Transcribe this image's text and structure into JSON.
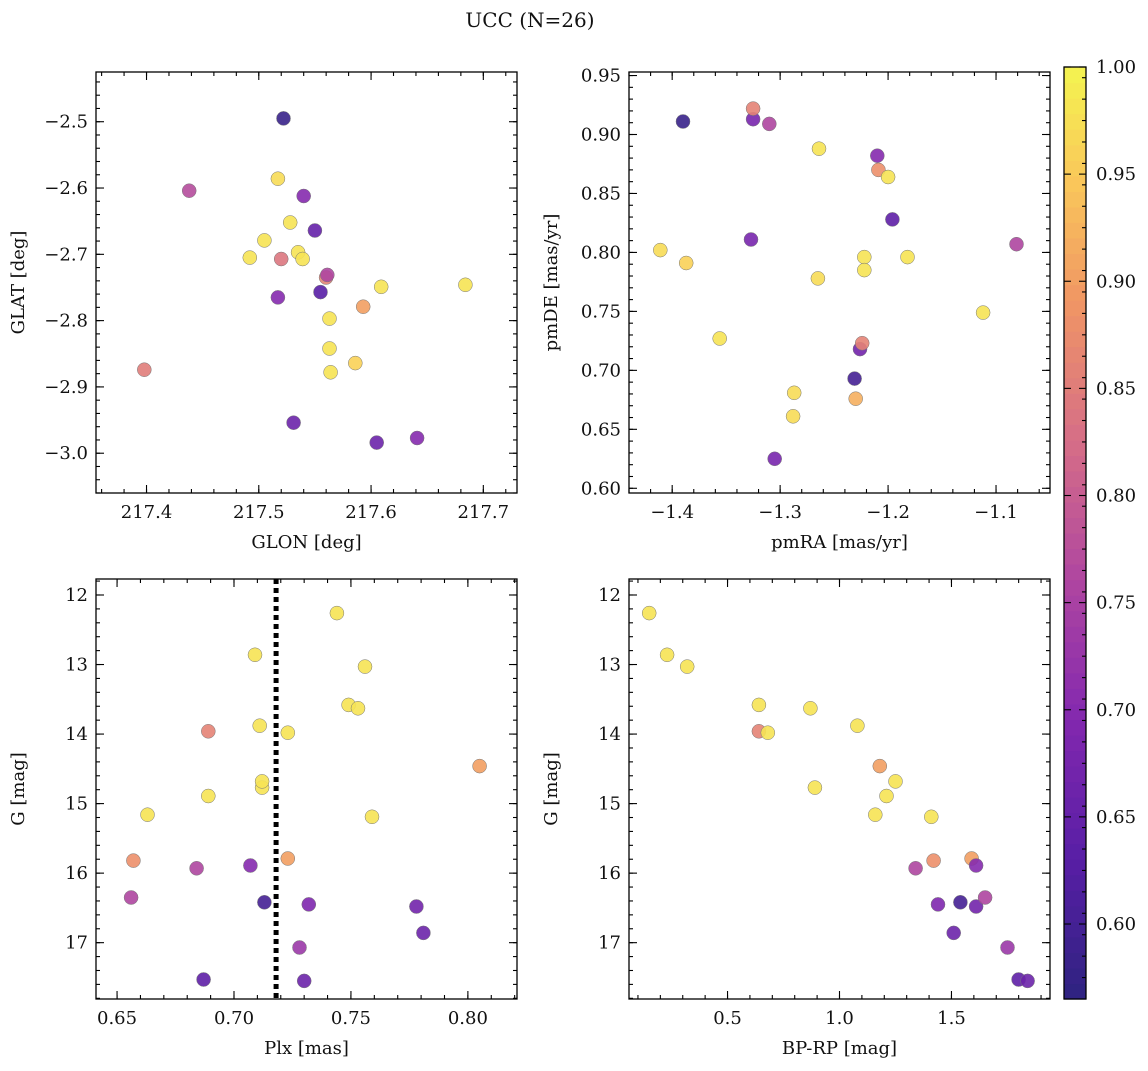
{
  "title": "UCC (N=26)",
  "colorbar": {
    "min": 0.565,
    "max": 1.0,
    "ticks": [
      1.0,
      0.95,
      0.9,
      0.85,
      0.8,
      0.75,
      0.7,
      0.65,
      0.6
    ],
    "tick_labels": [
      "1.00",
      "0.95",
      "0.90",
      "0.85",
      "0.80",
      "0.75",
      "0.70",
      "0.65",
      "0.60"
    ],
    "colormap": "plasma"
  },
  "chart_data": [
    {
      "type": "scatter",
      "xlabel": "GLON [deg]",
      "ylabel": "GLAT [deg]",
      "xlim": [
        217.355,
        217.73
      ],
      "ylim": [
        -3.06,
        -2.425
      ],
      "xticks": [
        217.4,
        217.5,
        217.6,
        217.7
      ],
      "xtick_labels": [
        "217.4",
        "217.5",
        "217.6",
        "217.7"
      ],
      "yticks": [
        -2.5,
        -2.6,
        -2.7,
        -2.8,
        -2.9,
        -3.0
      ],
      "ytick_labels": [
        "−2.5",
        "−2.6",
        "−2.7",
        "−2.8",
        "−2.9",
        "−3.0"
      ],
      "points": [
        {
          "x": 217.398,
          "y": -2.874,
          "c": 0.85
        },
        {
          "x": 217.438,
          "y": -2.604,
          "c": 0.77
        },
        {
          "x": 217.492,
          "y": -2.705,
          "c": 0.98
        },
        {
          "x": 217.505,
          "y": -2.679,
          "c": 0.98
        },
        {
          "x": 217.517,
          "y": -2.586,
          "c": 0.97
        },
        {
          "x": 217.517,
          "y": -2.765,
          "c": 0.7
        },
        {
          "x": 217.52,
          "y": -2.707,
          "c": 0.84
        },
        {
          "x": 217.522,
          "y": -2.495,
          "c": 0.58
        },
        {
          "x": 217.528,
          "y": -2.652,
          "c": 0.98
        },
        {
          "x": 217.531,
          "y": -2.954,
          "c": 0.66
        },
        {
          "x": 217.535,
          "y": -2.697,
          "c": 0.98
        },
        {
          "x": 217.539,
          "y": -2.707,
          "c": 0.98
        },
        {
          "x": 217.54,
          "y": -2.612,
          "c": 0.7
        },
        {
          "x": 217.55,
          "y": -2.664,
          "c": 0.65
        },
        {
          "x": 217.555,
          "y": -2.757,
          "c": 0.63
        },
        {
          "x": 217.56,
          "y": -2.735,
          "c": 0.86
        },
        {
          "x": 217.561,
          "y": -2.731,
          "c": 0.76
        },
        {
          "x": 217.563,
          "y": -2.842,
          "c": 0.98
        },
        {
          "x": 217.563,
          "y": -2.797,
          "c": 0.98
        },
        {
          "x": 217.564,
          "y": -2.878,
          "c": 0.98
        },
        {
          "x": 217.586,
          "y": -2.864,
          "c": 0.96
        },
        {
          "x": 217.593,
          "y": -2.779,
          "c": 0.9
        },
        {
          "x": 217.605,
          "y": -2.984,
          "c": 0.66
        },
        {
          "x": 217.609,
          "y": -2.749,
          "c": 0.98
        },
        {
          "x": 217.641,
          "y": -2.977,
          "c": 0.7
        },
        {
          "x": 217.684,
          "y": -2.746,
          "c": 0.98
        }
      ]
    },
    {
      "type": "scatter",
      "xlabel": "pmRA [mas/yr]",
      "ylabel": "pmDE [mas/yr]",
      "xlim": [
        -1.44,
        -1.05
      ],
      "ylim": [
        0.596,
        0.953
      ],
      "xticks": [
        -1.4,
        -1.3,
        -1.2,
        -1.1
      ],
      "xtick_labels": [
        "−1.4",
        "−1.3",
        "−1.2",
        "−1.1"
      ],
      "yticks": [
        0.6,
        0.65,
        0.7,
        0.75,
        0.8,
        0.85,
        0.9,
        0.95
      ],
      "ytick_labels": [
        "0.60",
        "0.65",
        "0.70",
        "0.75",
        "0.80",
        "0.85",
        "0.90",
        "0.95"
      ],
      "points": [
        {
          "x": -1.411,
          "y": 0.802,
          "c": 0.97
        },
        {
          "x": -1.39,
          "y": 0.911,
          "c": 0.58
        },
        {
          "x": -1.387,
          "y": 0.791,
          "c": 0.96
        },
        {
          "x": -1.356,
          "y": 0.727,
          "c": 0.98
        },
        {
          "x": -1.327,
          "y": 0.811,
          "c": 0.68
        },
        {
          "x": -1.325,
          "y": 0.913,
          "c": 0.68
        },
        {
          "x": -1.325,
          "y": 0.922,
          "c": 0.86
        },
        {
          "x": -1.31,
          "y": 0.909,
          "c": 0.76
        },
        {
          "x": -1.305,
          "y": 0.625,
          "c": 0.68
        },
        {
          "x": -1.288,
          "y": 0.661,
          "c": 0.97
        },
        {
          "x": -1.287,
          "y": 0.681,
          "c": 0.97
        },
        {
          "x": -1.265,
          "y": 0.778,
          "c": 0.97
        },
        {
          "x": -1.264,
          "y": 0.888,
          "c": 0.98
        },
        {
          "x": -1.231,
          "y": 0.693,
          "c": 0.6
        },
        {
          "x": -1.23,
          "y": 0.676,
          "c": 0.92
        },
        {
          "x": -1.226,
          "y": 0.718,
          "c": 0.67
        },
        {
          "x": -1.224,
          "y": 0.723,
          "c": 0.86
        },
        {
          "x": -1.222,
          "y": 0.796,
          "c": 0.98
        },
        {
          "x": -1.222,
          "y": 0.785,
          "c": 0.98
        },
        {
          "x": -1.21,
          "y": 0.882,
          "c": 0.7
        },
        {
          "x": -1.209,
          "y": 0.87,
          "c": 0.88
        },
        {
          "x": -1.2,
          "y": 0.864,
          "c": 0.98
        },
        {
          "x": -1.196,
          "y": 0.828,
          "c": 0.64
        },
        {
          "x": -1.182,
          "y": 0.796,
          "c": 0.98
        },
        {
          "x": -1.112,
          "y": 0.749,
          "c": 0.98
        },
        {
          "x": -1.081,
          "y": 0.807,
          "c": 0.76
        }
      ]
    },
    {
      "type": "scatter",
      "xlabel": "Plx [mas]",
      "ylabel": "G [mag]",
      "xlim": [
        0.641,
        0.821
      ],
      "ylim": [
        17.81,
        11.77
      ],
      "xticks": [
        0.65,
        0.7,
        0.75,
        0.8
      ],
      "xtick_labels": [
        "0.65",
        "0.70",
        "0.75",
        "0.80"
      ],
      "yticks": [
        12,
        13,
        14,
        15,
        16,
        17
      ],
      "ytick_labels": [
        "12",
        "13",
        "14",
        "15",
        "16",
        "17"
      ],
      "vline": 0.718,
      "points": [
        {
          "x": 0.656,
          "y": 16.35,
          "c": 0.76
        },
        {
          "x": 0.657,
          "y": 15.82,
          "c": 0.88
        },
        {
          "x": 0.663,
          "y": 15.16,
          "c": 0.98
        },
        {
          "x": 0.684,
          "y": 15.93,
          "c": 0.76
        },
        {
          "x": 0.687,
          "y": 17.53,
          "c": 0.64
        },
        {
          "x": 0.689,
          "y": 14.89,
          "c": 0.98
        },
        {
          "x": 0.689,
          "y": 13.96,
          "c": 0.86
        },
        {
          "x": 0.707,
          "y": 15.89,
          "c": 0.7
        },
        {
          "x": 0.709,
          "y": 12.86,
          "c": 0.98
        },
        {
          "x": 0.711,
          "y": 13.88,
          "c": 0.98
        },
        {
          "x": 0.712,
          "y": 14.77,
          "c": 0.98
        },
        {
          "x": 0.712,
          "y": 14.68,
          "c": 0.98
        },
        {
          "x": 0.713,
          "y": 16.42,
          "c": 0.6
        },
        {
          "x": 0.723,
          "y": 15.79,
          "c": 0.9
        },
        {
          "x": 0.723,
          "y": 13.98,
          "c": 0.98
        },
        {
          "x": 0.728,
          "y": 17.07,
          "c": 0.73
        },
        {
          "x": 0.73,
          "y": 17.55,
          "c": 0.66
        },
        {
          "x": 0.732,
          "y": 16.45,
          "c": 0.69
        },
        {
          "x": 0.744,
          "y": 12.26,
          "c": 0.98
        },
        {
          "x": 0.749,
          "y": 13.58,
          "c": 0.98
        },
        {
          "x": 0.753,
          "y": 13.63,
          "c": 0.98
        },
        {
          "x": 0.756,
          "y": 13.03,
          "c": 0.98
        },
        {
          "x": 0.759,
          "y": 15.19,
          "c": 0.98
        },
        {
          "x": 0.778,
          "y": 16.48,
          "c": 0.67
        },
        {
          "x": 0.781,
          "y": 16.86,
          "c": 0.66
        },
        {
          "x": 0.805,
          "y": 14.46,
          "c": 0.9
        }
      ]
    },
    {
      "type": "scatter",
      "xlabel": "BP-RP [mag]",
      "ylabel": "G [mag]",
      "xlim": [
        0.06,
        1.94
      ],
      "ylim": [
        17.81,
        11.77
      ],
      "xticks": [
        0.5,
        1.0,
        1.5
      ],
      "xtick_labels": [
        "0.5",
        "1.0",
        "1.5"
      ],
      "yticks": [
        12,
        13,
        14,
        15,
        16,
        17
      ],
      "ytick_labels": [
        "12",
        "13",
        "14",
        "15",
        "16",
        "17"
      ],
      "points": [
        {
          "x": 0.15,
          "y": 12.26,
          "c": 0.98
        },
        {
          "x": 0.23,
          "y": 12.86,
          "c": 0.98
        },
        {
          "x": 0.32,
          "y": 13.03,
          "c": 0.98
        },
        {
          "x": 0.64,
          "y": 13.58,
          "c": 0.98
        },
        {
          "x": 0.64,
          "y": 13.96,
          "c": 0.86
        },
        {
          "x": 0.68,
          "y": 13.98,
          "c": 0.98
        },
        {
          "x": 0.87,
          "y": 13.63,
          "c": 0.98
        },
        {
          "x": 0.89,
          "y": 14.77,
          "c": 0.98
        },
        {
          "x": 1.08,
          "y": 13.88,
          "c": 0.98
        },
        {
          "x": 1.16,
          "y": 15.16,
          "c": 0.98
        },
        {
          "x": 1.18,
          "y": 14.46,
          "c": 0.9
        },
        {
          "x": 1.21,
          "y": 14.89,
          "c": 0.98
        },
        {
          "x": 1.25,
          "y": 14.68,
          "c": 0.98
        },
        {
          "x": 1.34,
          "y": 15.93,
          "c": 0.76
        },
        {
          "x": 1.41,
          "y": 15.19,
          "c": 0.98
        },
        {
          "x": 1.42,
          "y": 15.82,
          "c": 0.88
        },
        {
          "x": 1.44,
          "y": 16.45,
          "c": 0.69
        },
        {
          "x": 1.51,
          "y": 16.86,
          "c": 0.66
        },
        {
          "x": 1.54,
          "y": 16.42,
          "c": 0.6
        },
        {
          "x": 1.59,
          "y": 15.79,
          "c": 0.9
        },
        {
          "x": 1.61,
          "y": 15.89,
          "c": 0.7
        },
        {
          "x": 1.61,
          "y": 16.48,
          "c": 0.67
        },
        {
          "x": 1.65,
          "y": 16.35,
          "c": 0.76
        },
        {
          "x": 1.75,
          "y": 17.07,
          "c": 0.73
        },
        {
          "x": 1.8,
          "y": 17.53,
          "c": 0.64
        },
        {
          "x": 1.84,
          "y": 17.55,
          "c": 0.66
        }
      ]
    }
  ]
}
